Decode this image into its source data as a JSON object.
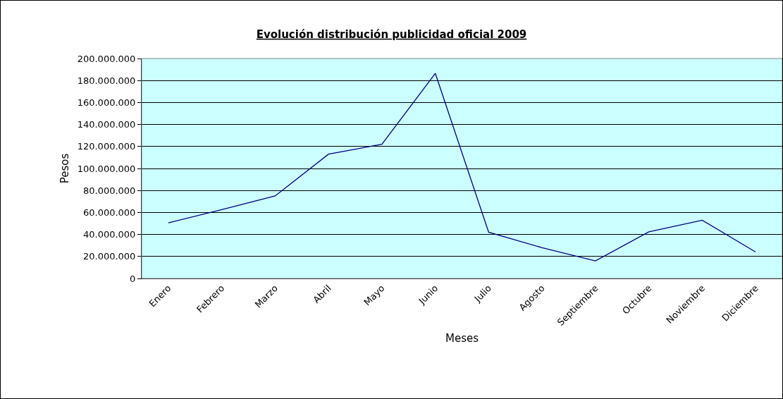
{
  "chart_data": {
    "type": "line",
    "title": "Evolución distribución publicidad oficial 2009",
    "xlabel": "Meses",
    "ylabel": "Pesos",
    "categories": [
      "Enero",
      "Febrero",
      "Marzo",
      "Abril",
      "Mayo",
      "Junio",
      "Julio",
      "Agosto",
      "Septiembre",
      "Octubre",
      "Noviembre",
      "Diciembre"
    ],
    "series": [
      {
        "color": "#000080",
        "values": [
          50500000,
          62600000,
          75000000,
          113000000,
          122000000,
          186500000,
          42000000,
          28000000,
          16000000,
          42400000,
          53000000,
          24000000
        ]
      }
    ],
    "ylim": [
      0,
      200000000
    ],
    "yticks": [
      {
        "value": 0,
        "label": "0"
      },
      {
        "value": 20000000,
        "label": "20.000.000"
      },
      {
        "value": 40000000,
        "label": "40.000.000"
      },
      {
        "value": 60000000,
        "label": "60.000.000"
      },
      {
        "value": 80000000,
        "label": "80.000.000"
      },
      {
        "value": 100000000,
        "label": "100.000.000"
      },
      {
        "value": 120000000,
        "label": "120.000.000"
      },
      {
        "value": 140000000,
        "label": "140.000.000"
      },
      {
        "value": 160000000,
        "label": "160.000.000"
      },
      {
        "value": 180000000,
        "label": "180.000.000"
      },
      {
        "value": 200000000,
        "label": "200.000.000"
      }
    ],
    "grid": "y",
    "marker": "none",
    "line_style": "solid"
  }
}
